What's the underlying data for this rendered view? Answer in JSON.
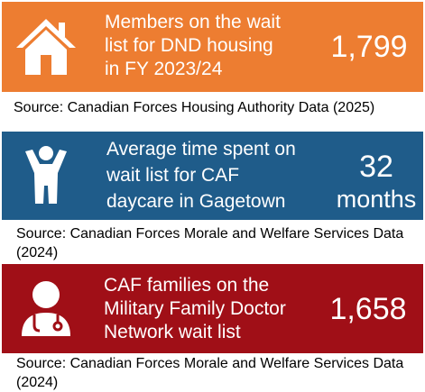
{
  "panels": [
    {
      "title_lines": [
        "Members on the wait",
        "list for DND housing",
        "in FY 2023/24"
      ],
      "value": "1,799",
      "source": "Source: Canadian Forces Housing Authority Data (2025)"
    },
    {
      "title_lines": [
        "Average time spent on",
        "wait list for CAF",
        "daycare in Gagetown"
      ],
      "value": "32",
      "unit": "months",
      "source": "Source: Canadian Forces Morale and Welfare Services Data (2024)"
    },
    {
      "title_lines": [
        "CAF families on the",
        "Military Family Doctor",
        "Network wait list"
      ],
      "value": "1,658",
      "source": "Source: Canadian Forces Morale and Welfare Services Data (2024)"
    }
  ]
}
